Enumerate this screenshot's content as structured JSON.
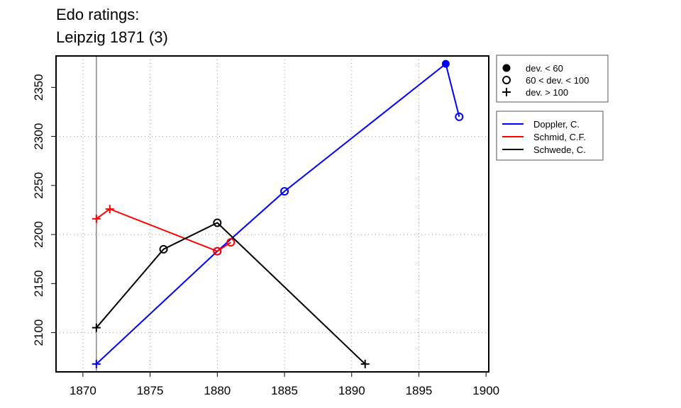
{
  "chart_data": {
    "type": "line",
    "title": [
      "Edo ratings:",
      "Leipzig 1871 (3)"
    ],
    "xlabel": "",
    "ylabel": "",
    "xlim": [
      1868,
      1900.2
    ],
    "ylim": [
      2060,
      2382
    ],
    "x_ticks": [
      1870,
      1875,
      1880,
      1885,
      1890,
      1895,
      1900
    ],
    "y_ticks": [
      2100,
      2150,
      2200,
      2250,
      2300,
      2350
    ],
    "grid": true,
    "grid_x": [
      1870,
      1875,
      1880,
      1885,
      1890,
      1895
    ],
    "grid_y": [
      2100,
      2200,
      2300
    ],
    "reference_line_x": 1871,
    "dev_legend": {
      "placement": "top-right",
      "entries": [
        {
          "marker": "filled",
          "label": "dev. < 60"
        },
        {
          "marker": "open",
          "label": "60 < dev. < 100"
        },
        {
          "marker": "plus",
          "label": "dev. > 100"
        }
      ]
    },
    "series_legend_placement": "right",
    "series": [
      {
        "name": "Doppler, C.",
        "color": "#0000ff",
        "points": [
          {
            "x": 1871,
            "y": 2068,
            "marker": "plus"
          },
          {
            "x": 1880,
            "y": 2183,
            "marker": "open"
          },
          {
            "x": 1885,
            "y": 2244,
            "marker": "open"
          },
          {
            "x": 1897,
            "y": 2374,
            "marker": "filled"
          },
          {
            "x": 1898,
            "y": 2320,
            "marker": "open"
          }
        ]
      },
      {
        "name": "Schmid, C.F.",
        "color": "#ff0000",
        "points": [
          {
            "x": 1871,
            "y": 2216,
            "marker": "plus"
          },
          {
            "x": 1872,
            "y": 2226,
            "marker": "plus"
          },
          {
            "x": 1880,
            "y": 2183,
            "marker": "open"
          },
          {
            "x": 1881,
            "y": 2192,
            "marker": "open"
          }
        ]
      },
      {
        "name": "Schwede, C.",
        "color": "#000000",
        "points": [
          {
            "x": 1871,
            "y": 2105,
            "marker": "plus"
          },
          {
            "x": 1876,
            "y": 2185,
            "marker": "open"
          },
          {
            "x": 1880,
            "y": 2212,
            "marker": "open"
          },
          {
            "x": 1891,
            "y": 2068,
            "marker": "plus"
          }
        ]
      }
    ]
  }
}
